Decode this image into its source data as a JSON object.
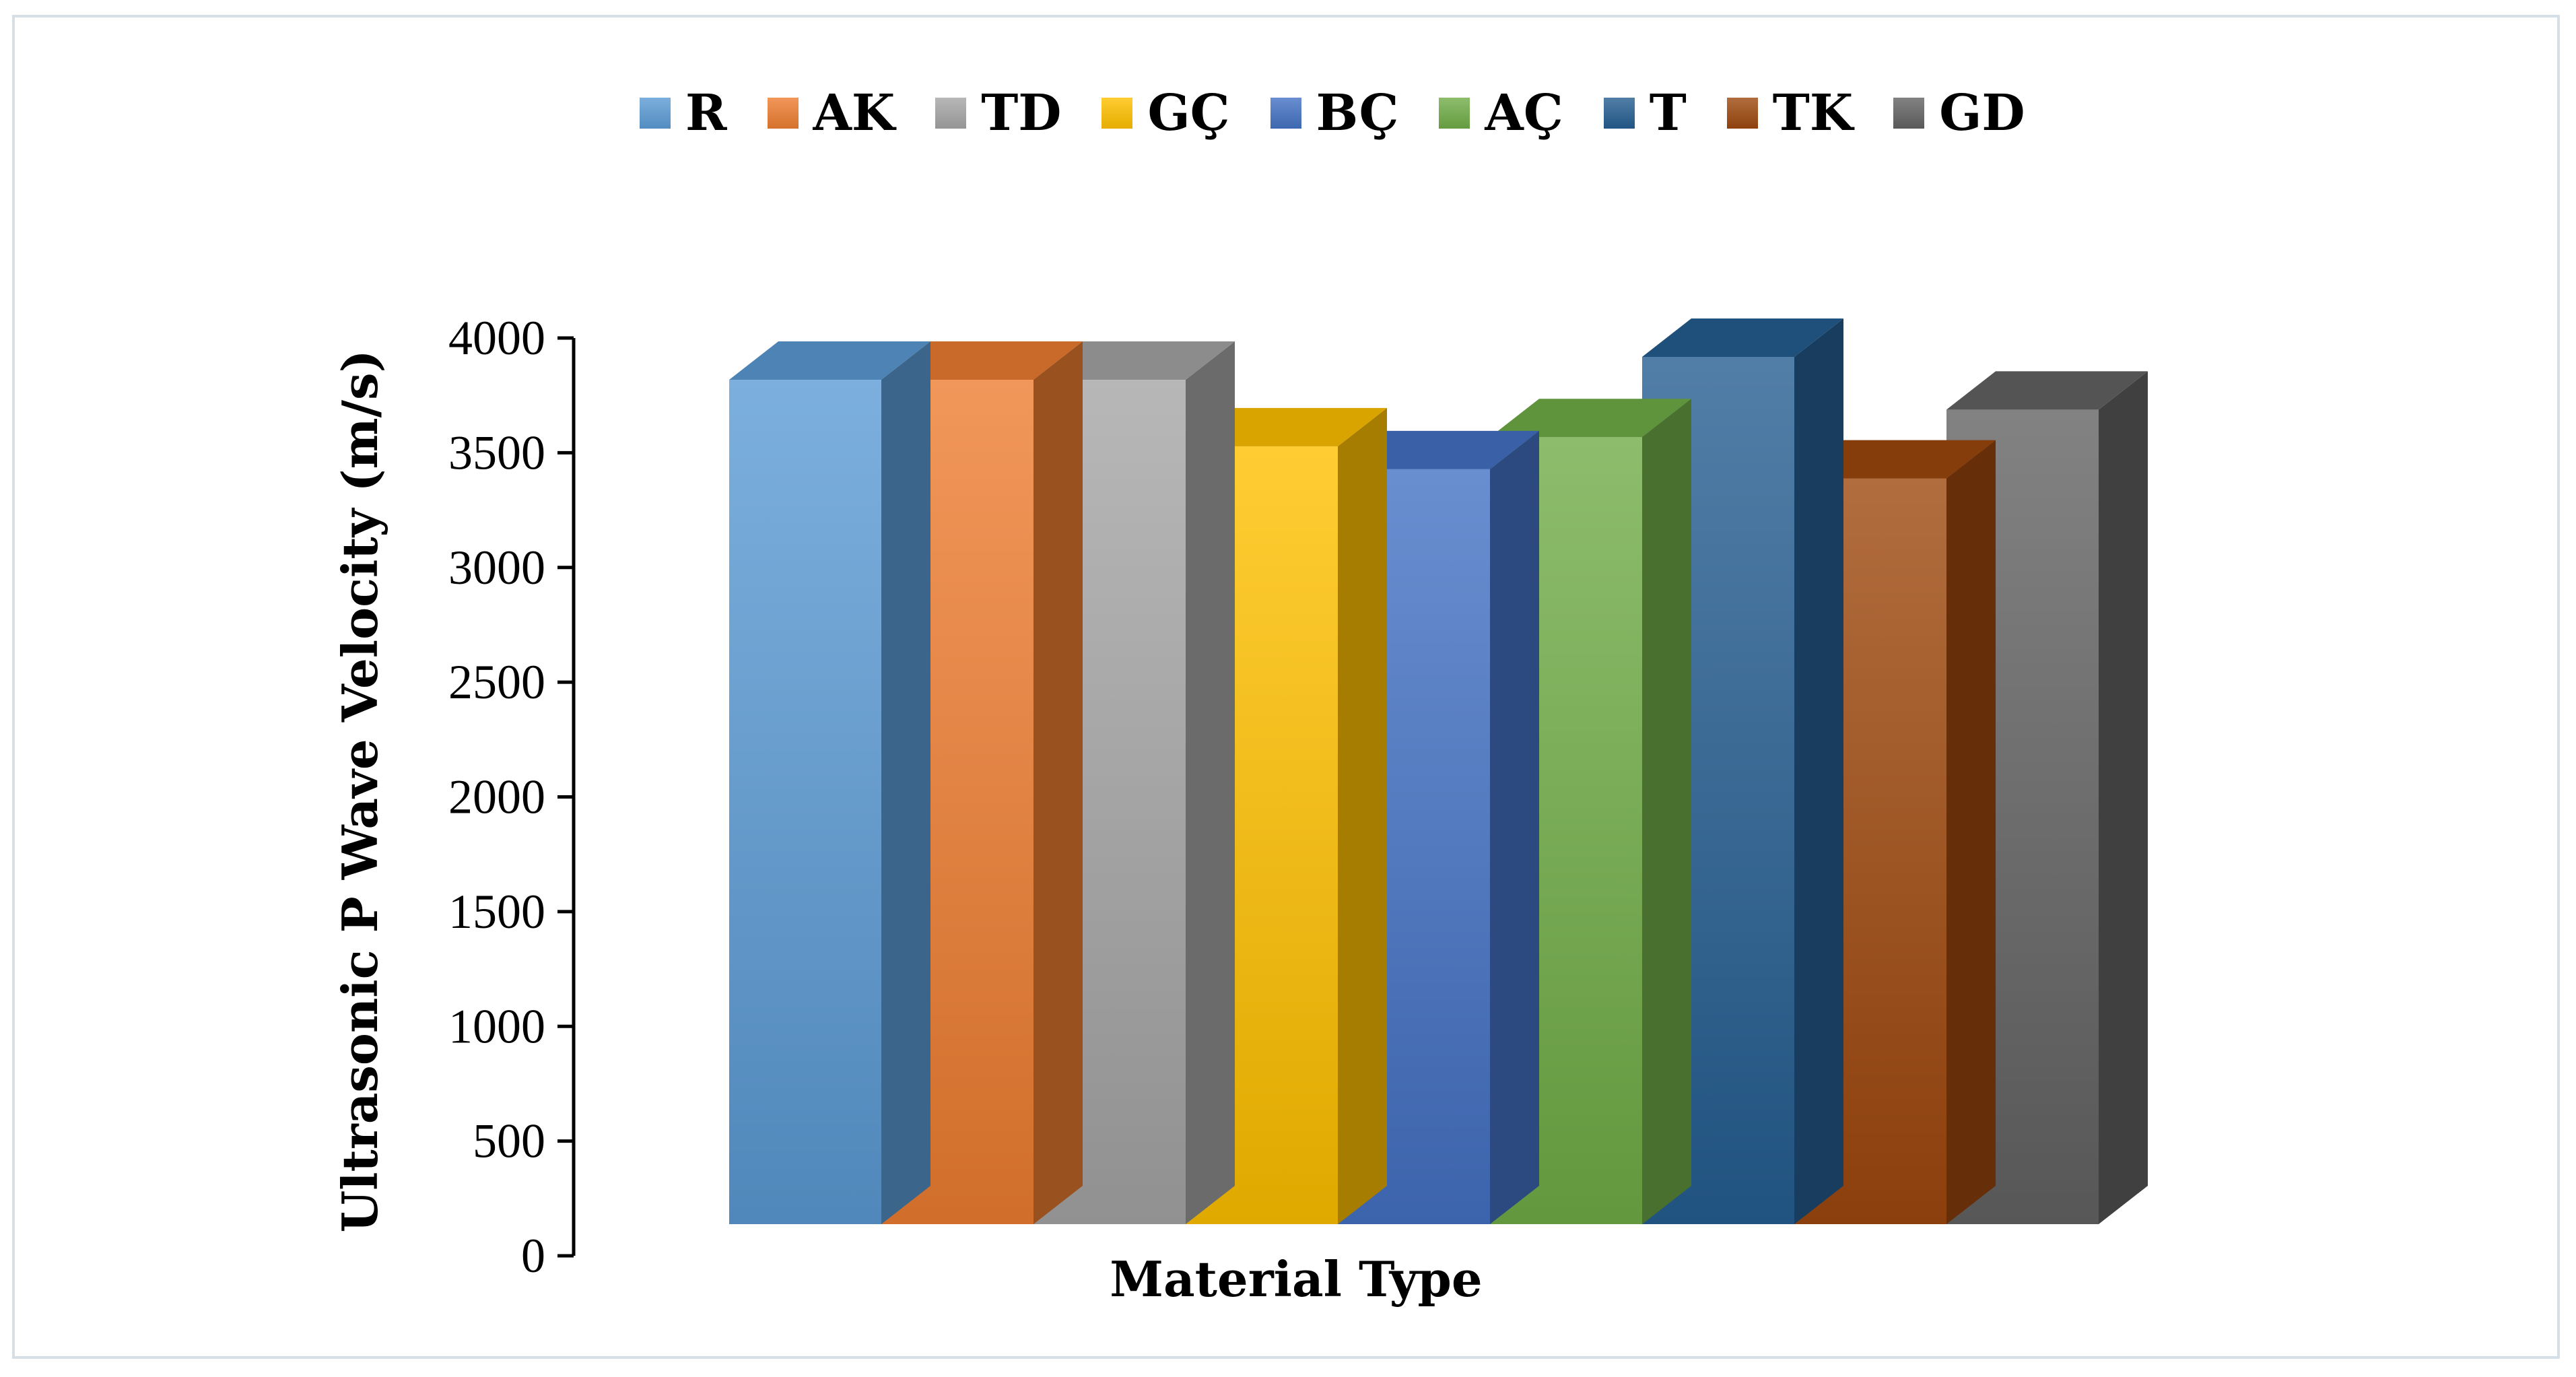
{
  "chart_data": {
    "type": "bar",
    "title": "",
    "xlabel": "Material Type",
    "ylabel": "Ultrasonic P Wave Velocity  (m/s)",
    "ylim": [
      0,
      4000
    ],
    "yticks": [
      "0",
      "500",
      "1000",
      "1500",
      "2000",
      "2500",
      "3000",
      "3500",
      "4000"
    ],
    "legend_position": "top",
    "grid": false,
    "series": [
      {
        "name": "R",
        "value": 3680,
        "color": "#5b9bd5"
      },
      {
        "name": "AK",
        "value": 3680,
        "color": "#ed7d31"
      },
      {
        "name": "TD",
        "value": 3680,
        "color": "#a5a5a5"
      },
      {
        "name": "GÇ",
        "value": 3390,
        "color": "#ffc000"
      },
      {
        "name": "BÇ",
        "value": 3290,
        "color": "#4472c4"
      },
      {
        "name": "AÇ",
        "value": 3430,
        "color": "#70ad47"
      },
      {
        "name": "T",
        "value": 3780,
        "color": "#255e91"
      },
      {
        "name": "TK",
        "value": 3250,
        "color": "#9e480e"
      },
      {
        "name": "GD",
        "value": 3550,
        "color": "#636363"
      }
    ]
  }
}
